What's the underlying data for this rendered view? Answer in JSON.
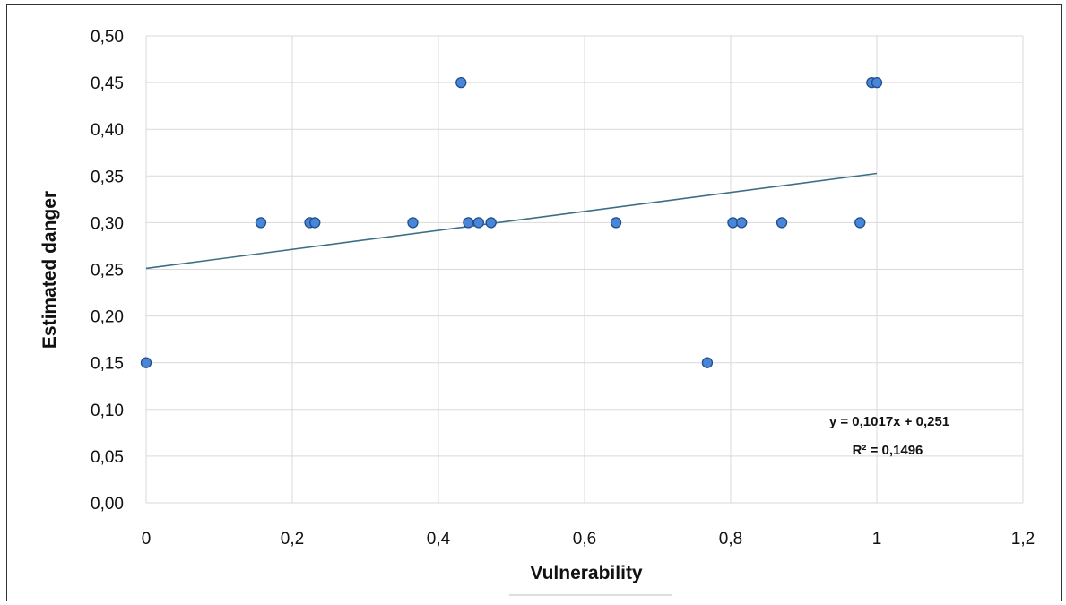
{
  "chart_data": {
    "type": "scatter",
    "title": "",
    "xlabel": "Vulnerability",
    "ylabel": "Estimated danger",
    "xlim": [
      0,
      1.2
    ],
    "ylim": [
      0,
      0.5
    ],
    "x_ticks": [
      "0",
      "0,2",
      "0,4",
      "0,6",
      "0,8",
      "1",
      "1,2"
    ],
    "y_ticks": [
      "0,00",
      "0,05",
      "0,10",
      "0,15",
      "0,20",
      "0,25",
      "0,30",
      "0,35",
      "0,40",
      "0,45",
      "0,50"
    ],
    "grid": true,
    "legend": "none",
    "series": [
      {
        "points": [
          {
            "x": 0.0,
            "y": 0.15
          },
          {
            "x": 0.157,
            "y": 0.3
          },
          {
            "x": 0.224,
            "y": 0.3
          },
          {
            "x": 0.231,
            "y": 0.3
          },
          {
            "x": 0.365,
            "y": 0.3
          },
          {
            "x": 0.431,
            "y": 0.45
          },
          {
            "x": 0.441,
            "y": 0.3
          },
          {
            "x": 0.455,
            "y": 0.3
          },
          {
            "x": 0.472,
            "y": 0.3
          },
          {
            "x": 0.643,
            "y": 0.3
          },
          {
            "x": 0.768,
            "y": 0.15
          },
          {
            "x": 0.803,
            "y": 0.3
          },
          {
            "x": 0.815,
            "y": 0.3
          },
          {
            "x": 0.87,
            "y": 0.3
          },
          {
            "x": 0.977,
            "y": 0.3
          },
          {
            "x": 0.993,
            "y": 0.45
          },
          {
            "x": 1.0,
            "y": 0.45
          }
        ]
      }
    ],
    "trendline": {
      "slope": 0.1017,
      "intercept": 0.251,
      "x_range": [
        0,
        1.0
      ],
      "equation": "y = 0,1017x  + 0,251",
      "r_squared": "R² = 0,1496"
    },
    "colors": {
      "marker_fill": "#4a86d8",
      "marker_stroke": "#1f4e8c",
      "trendline": "#3c6e86",
      "grid": "#d9d9d9"
    }
  }
}
